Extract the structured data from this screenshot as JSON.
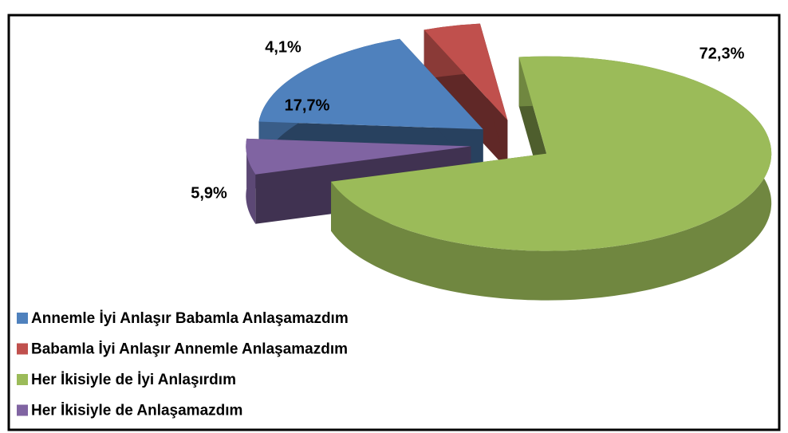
{
  "chart_data": {
    "type": "pie",
    "categories": [
      "Annemle İyi Anlaşır Babamla Anlaşamazdım",
      "Babamla İyi Anlaşır Annemle Anlaşamazdım",
      "Her İkisiyle de İyi Anlaşırdım",
      "Her İkisiyle de Anlaşamazdım"
    ],
    "values": [
      17.7,
      4.1,
      72.3,
      5.9
    ],
    "value_labels": [
      "17,7%",
      "4,1%",
      "72,3%",
      "5,9%"
    ],
    "colors": [
      "#4f81bd",
      "#c0504d",
      "#9bbb59",
      "#8064a2"
    ],
    "legend": "bottom-left"
  }
}
